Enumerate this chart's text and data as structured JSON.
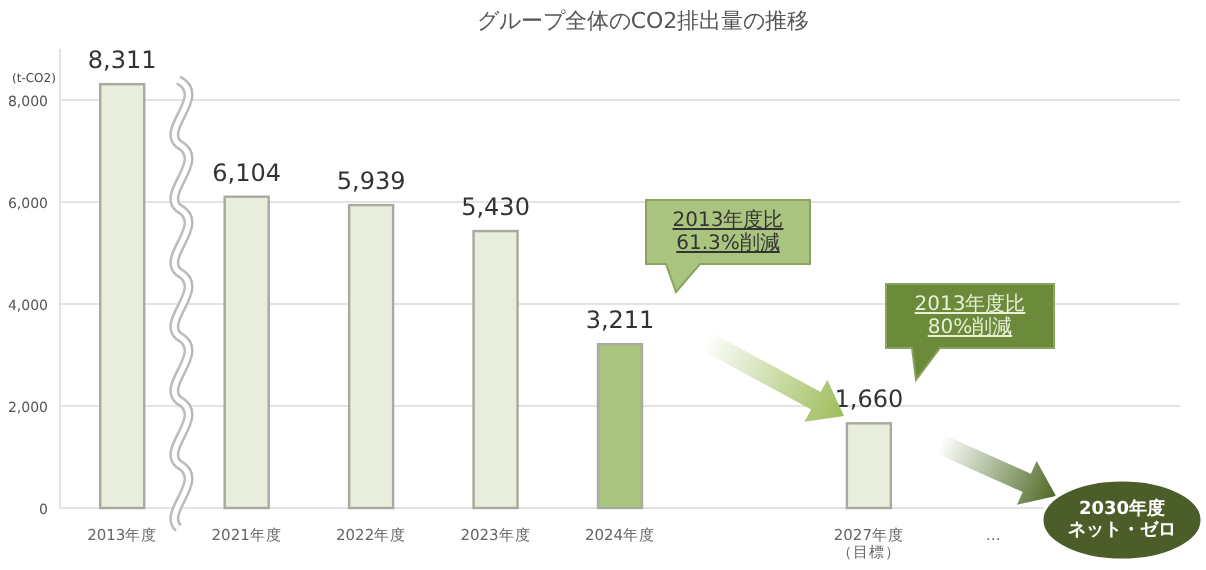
{
  "chart_data": {
    "type": "bar",
    "title": "グループ全体のCO2排出量の推移",
    "ylabel": "(t-CO2)",
    "categories": [
      "2013年度",
      "2021年度",
      "2022年度",
      "2023年度",
      "2024年度",
      null,
      "2027年度（目標）",
      "…",
      null
    ],
    "values": [
      8311,
      6104,
      5939,
      5430,
      3211,
      null,
      1660,
      null,
      null
    ],
    "value_labels": [
      "8,311",
      "6,104",
      "5,939",
      "5,430",
      "3,211",
      null,
      "1,660",
      null,
      null
    ],
    "colors": [
      "#e9eedc",
      "#e9eedc",
      "#e9eedc",
      "#e9eedc",
      "#a9c47f",
      null,
      "#e9eedc",
      null,
      null
    ],
    "ylim": [
      0,
      9000
    ],
    "yticks": [
      {
        "value": 0,
        "label": "0"
      },
      {
        "value": 2000,
        "label": "2,000"
      },
      {
        "value": 4000,
        "label": "4,000"
      },
      {
        "value": 6000,
        "label": "6,000"
      },
      {
        "value": 8000,
        "label": "8,000"
      }
    ],
    "grid": "y",
    "annotations": [
      "2013年度比61.3%削減",
      "2013年度比80%削減",
      "2030年度ネット・ゼロ"
    ]
  }
}
